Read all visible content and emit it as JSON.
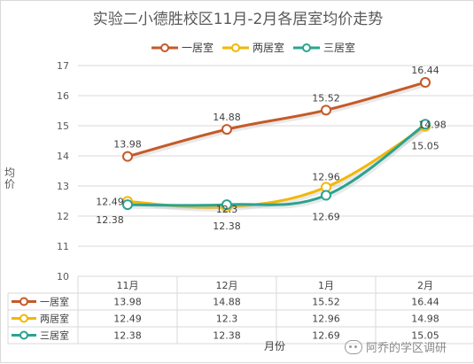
{
  "chart_data": {
    "type": "line",
    "title": "实验二小德胜校区11月-2月各居室均价走势",
    "xlabel": "月份",
    "ylabel": "均价",
    "categories": [
      "11月",
      "12月",
      "1月",
      "2月"
    ],
    "ylim": [
      10,
      17
    ],
    "yticks": [
      "10",
      "11",
      "12",
      "13",
      "14",
      "15",
      "16",
      "17"
    ],
    "grid": true,
    "legend_position": "top",
    "series": [
      {
        "name": "一居室",
        "values": [
          13.98,
          14.88,
          15.52,
          16.44
        ],
        "labels": [
          "13.98",
          "14.88",
          "15.52",
          "16.44"
        ],
        "color": "#C55A28"
      },
      {
        "name": "两居室",
        "values": [
          12.49,
          12.3,
          12.96,
          14.98
        ],
        "labels": [
          "12.49",
          "12.3",
          "12.96",
          "14.98"
        ],
        "color": "#F2B705"
      },
      {
        "name": "三居室",
        "values": [
          12.38,
          12.38,
          12.69,
          15.05
        ],
        "labels": [
          "12.38",
          "12.38",
          "12.69",
          "15.05"
        ],
        "color": "#2BA391"
      }
    ],
    "table": {
      "rows": [
        {
          "name": "一居室",
          "cells": [
            "13.98",
            "14.88",
            "15.52",
            "16.44"
          ]
        },
        {
          "name": "两居室",
          "cells": [
            "12.49",
            "12.3",
            "12.96",
            "14.98"
          ]
        },
        {
          "name": "三居室",
          "cells": [
            "12.38",
            "12.38",
            "12.69",
            "15.05"
          ]
        }
      ]
    }
  },
  "watermark": "阿乔的学区调研"
}
